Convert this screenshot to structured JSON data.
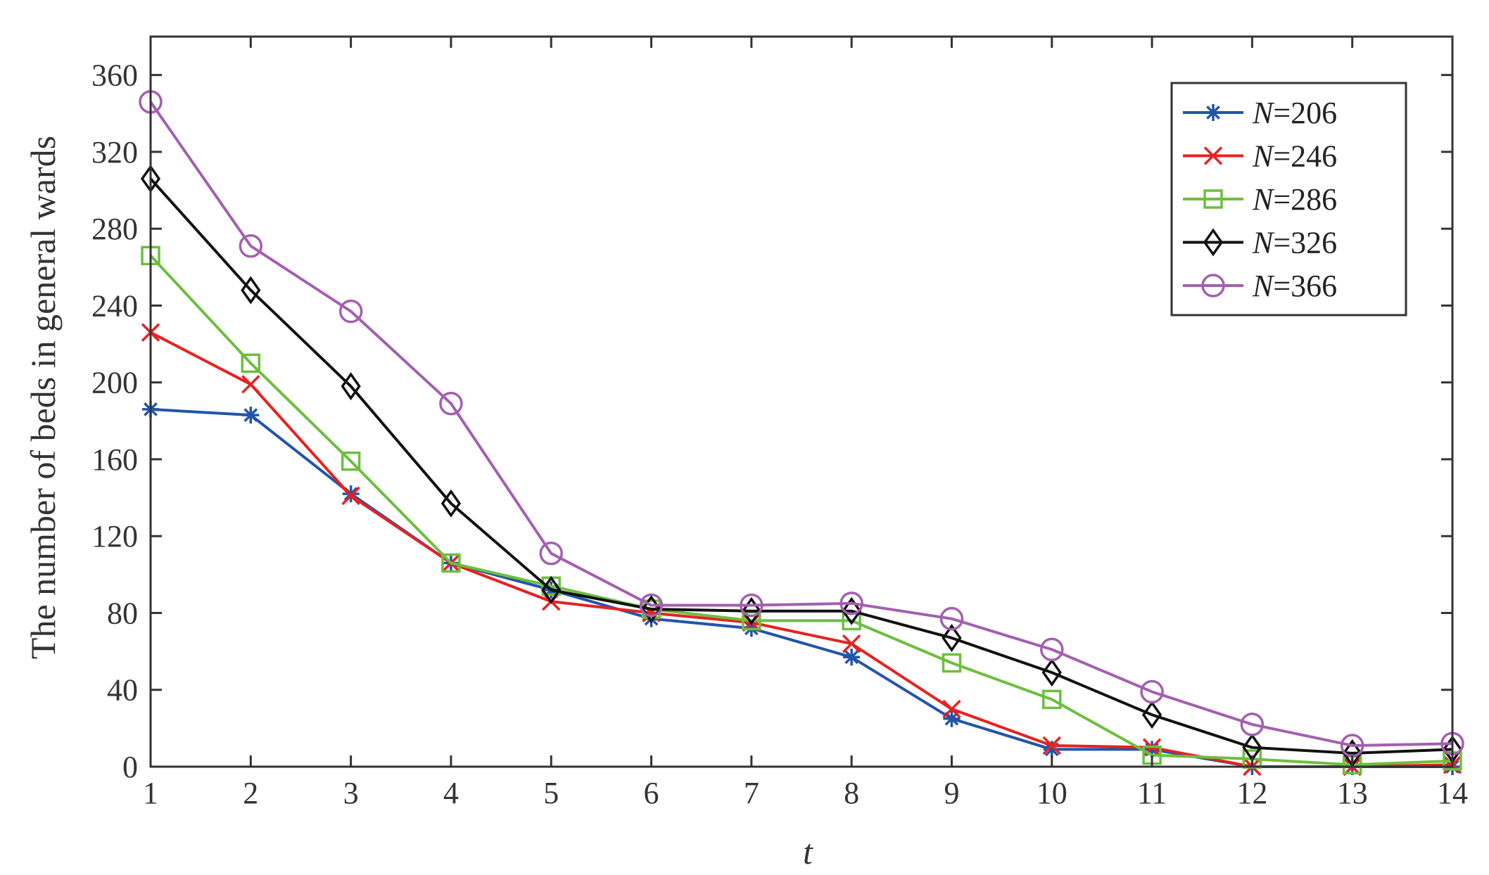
{
  "chart_data": {
    "type": "line",
    "title": "",
    "xlabel": "t",
    "ylabel": "The number of beds in general wards",
    "x": [
      1,
      2,
      3,
      4,
      5,
      6,
      7,
      8,
      9,
      10,
      11,
      12,
      13,
      14
    ],
    "xlim": [
      1,
      14
    ],
    "ylim": [
      0,
      380
    ],
    "xticks": [
      1,
      2,
      3,
      4,
      5,
      6,
      7,
      8,
      9,
      10,
      11,
      12,
      13,
      14
    ],
    "yticks": [
      0,
      40,
      80,
      120,
      160,
      200,
      240,
      280,
      320,
      360
    ],
    "grid": false,
    "legend_position": "top-right",
    "series": [
      {
        "name": "N=206",
        "name_var": "N",
        "name_value": "=206",
        "color": "#2255aa",
        "marker": "asterisk",
        "values": [
          186,
          183,
          142,
          106,
          92,
          77,
          72,
          57,
          25,
          9,
          9,
          0,
          0,
          0
        ]
      },
      {
        "name": "N=246",
        "name_var": "N",
        "name_value": "=246",
        "color": "#e52222",
        "marker": "x",
        "values": [
          226,
          199,
          141,
          106,
          86,
          80,
          75,
          64,
          30,
          11,
          10,
          0,
          0,
          1
        ]
      },
      {
        "name": "N=286",
        "name_var": "N",
        "name_value": "=286",
        "color": "#6cbf3e",
        "marker": "square",
        "values": [
          266,
          210,
          159,
          106,
          94,
          82,
          76,
          76,
          54,
          35,
          6,
          4,
          1,
          3
        ]
      },
      {
        "name": "N=326",
        "name_var": "N",
        "name_value": "=326",
        "color": "#111111",
        "marker": "diamond",
        "values": [
          306,
          248,
          198,
          137,
          92,
          82,
          81,
          81,
          67,
          49,
          27,
          10,
          7,
          9
        ]
      },
      {
        "name": "N=366",
        "name_var": "N",
        "name_value": "=366",
        "color": "#a35fb0",
        "marker": "circle",
        "values": [
          346,
          271,
          237,
          189,
          111,
          84,
          84,
          85,
          77,
          61,
          39,
          22,
          11,
          12
        ]
      }
    ]
  }
}
